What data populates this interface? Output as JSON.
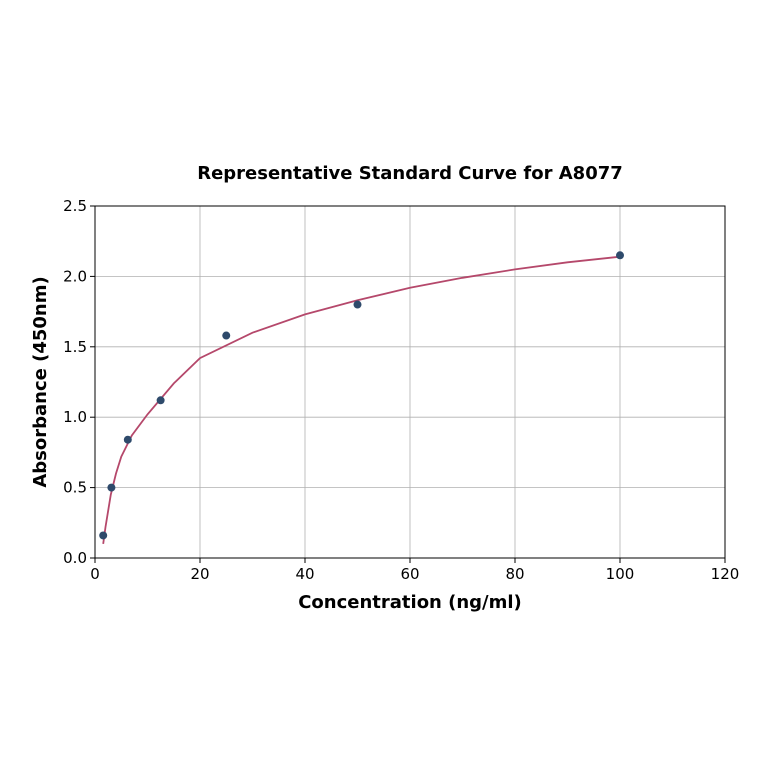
{
  "chart_data": {
    "type": "scatter",
    "title": "Representative Standard Curve for A8077",
    "xlabel": "Concentration (ng/ml)",
    "ylabel": "Absorbance (450nm)",
    "xlim": [
      0,
      120
    ],
    "ylim": [
      0,
      2.5
    ],
    "xticks": [
      "0",
      "20",
      "40",
      "60",
      "80",
      "100",
      "120"
    ],
    "yticks": [
      "0.0",
      "0.5",
      "1.0",
      "1.5",
      "2.0",
      "2.5"
    ],
    "grid": true,
    "points": {
      "x": [
        1.5625,
        3.125,
        6.25,
        12.5,
        25,
        50,
        100
      ],
      "y": [
        0.16,
        0.5,
        0.84,
        1.12,
        1.58,
        1.8,
        2.15
      ]
    },
    "fit_curve": {
      "x": [
        1.5625,
        2,
        3,
        4,
        5,
        7,
        10,
        15,
        20,
        30,
        40,
        50,
        60,
        70,
        80,
        90,
        100
      ],
      "y": [
        0.1,
        0.22,
        0.45,
        0.6,
        0.72,
        0.87,
        1.02,
        1.24,
        1.42,
        1.6,
        1.73,
        1.83,
        1.92,
        1.99,
        2.05,
        2.1,
        2.14
      ]
    },
    "colors": {
      "points": "#2e4a6b",
      "curve": "#b5486b",
      "grid": "#b0b0b0"
    }
  }
}
